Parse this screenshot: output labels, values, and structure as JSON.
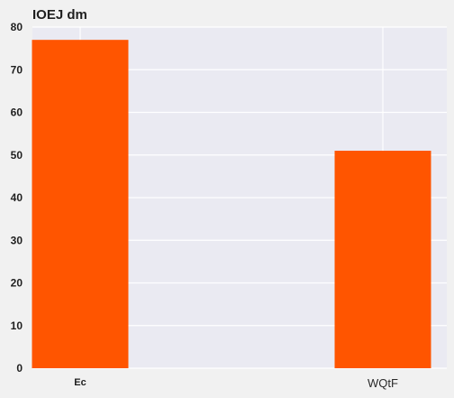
{
  "chart_data": {
    "type": "bar",
    "title": "IOEJ dm",
    "xlabel": "",
    "ylabel": "",
    "categories": [
      "Ec",
      "WQtF"
    ],
    "values": [
      77,
      51
    ],
    "ylim": [
      0,
      80
    ],
    "yticks": [
      "0",
      "10",
      "20",
      "30",
      "40",
      "50",
      "60",
      "70",
      "80"
    ],
    "grid": true,
    "colors": {
      "bar": "#ff5500",
      "plot_background": "#eaeaf2",
      "grid": "#ffffff",
      "page_background": "#f1f1f1"
    }
  }
}
